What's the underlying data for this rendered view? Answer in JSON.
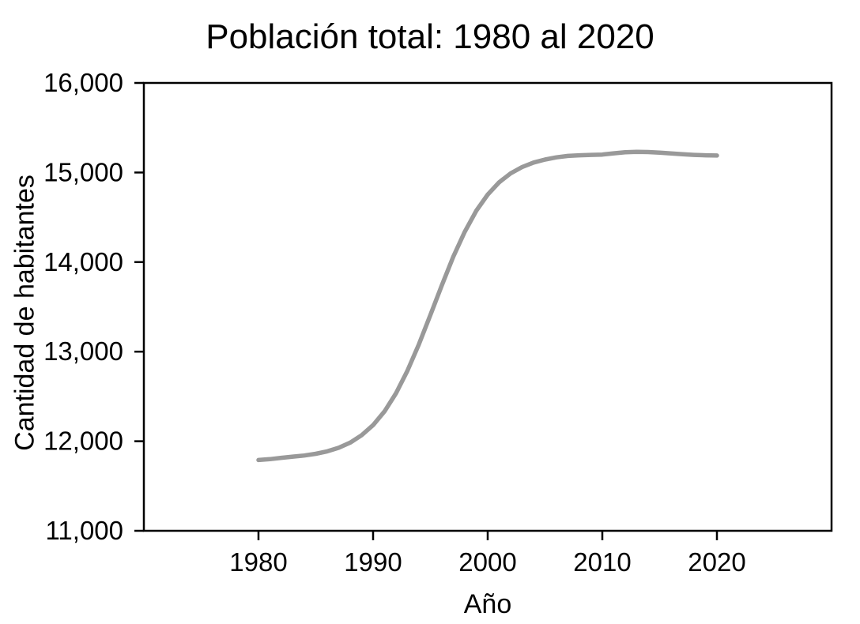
{
  "chart": {
    "title": "Población total: 1980 al 2020",
    "xlabel": "Año",
    "ylabel": "Cantidad de habitantes"
  },
  "colors": {
    "line": "#999999",
    "axis": "#000000",
    "text": "#000000",
    "background": "#ffffff"
  },
  "chart_data": {
    "type": "line",
    "title": "Población total: 1980 al 2020",
    "xlabel": "Año",
    "ylabel": "Cantidad de habitantes",
    "xlim": [
      1970,
      2030
    ],
    "ylim": [
      11000,
      16000
    ],
    "grid": false,
    "legend": false,
    "x_ticks": [
      1980,
      1990,
      2000,
      2010,
      2020
    ],
    "x_tick_labels": [
      "1980",
      "1990",
      "2000",
      "2010",
      "2020"
    ],
    "y_ticks": [
      11000,
      12000,
      13000,
      14000,
      15000,
      16000
    ],
    "y_tick_labels": [
      "11,000",
      "12,000",
      "13,000",
      "14,000",
      "15,000",
      "16,000"
    ],
    "line_color": "#999999",
    "line_width": 5.5,
    "series": [
      {
        "name": "Población total",
        "x": [
          1980,
          1981,
          1982,
          1983,
          1984,
          1985,
          1986,
          1987,
          1988,
          1989,
          1990,
          1991,
          1992,
          1993,
          1994,
          1995,
          1996,
          1997,
          1998,
          1999,
          2000,
          2001,
          2002,
          2003,
          2004,
          2005,
          2006,
          2007,
          2008,
          2009,
          2010,
          2011,
          2012,
          2013,
          2014,
          2015,
          2016,
          2017,
          2018,
          2019,
          2020
        ],
        "values": [
          11790,
          11800,
          11815,
          11828,
          11840,
          11860,
          11887,
          11927,
          11984,
          12067,
          12180,
          12333,
          12535,
          12788,
          13083,
          13409,
          13742,
          14061,
          14339,
          14572,
          14753,
          14891,
          14990,
          15061,
          15111,
          15145,
          15169,
          15185,
          15192,
          15197,
          15200,
          15214,
          15226,
          15231,
          15228,
          15221,
          15213,
          15204,
          15197,
          15192,
          15190
        ]
      }
    ]
  }
}
